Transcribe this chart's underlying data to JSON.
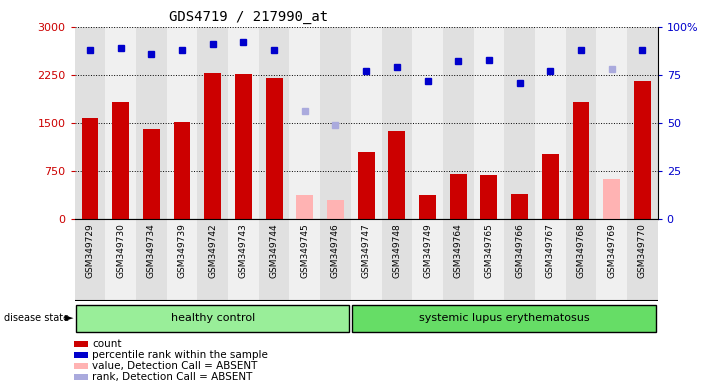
{
  "title": "GDS4719 / 217990_at",
  "samples": [
    "GSM349729",
    "GSM349730",
    "GSM349734",
    "GSM349739",
    "GSM349742",
    "GSM349743",
    "GSM349744",
    "GSM349745",
    "GSM349746",
    "GSM349747",
    "GSM349748",
    "GSM349749",
    "GSM349764",
    "GSM349765",
    "GSM349766",
    "GSM349767",
    "GSM349768",
    "GSM349769",
    "GSM349770"
  ],
  "counts": [
    1580,
    1820,
    1400,
    1520,
    2280,
    2270,
    2200,
    null,
    null,
    1050,
    1380,
    380,
    700,
    690,
    390,
    1020,
    1820,
    null,
    2150
  ],
  "counts_absent": [
    null,
    null,
    null,
    null,
    null,
    null,
    null,
    380,
    300,
    null,
    null,
    null,
    null,
    null,
    null,
    null,
    null,
    620,
    null
  ],
  "percentiles": [
    88,
    89,
    86,
    88,
    91,
    92,
    88,
    null,
    null,
    77,
    79,
    72,
    82,
    83,
    71,
    77,
    88,
    null,
    88
  ],
  "percentiles_absent": [
    null,
    null,
    null,
    null,
    null,
    null,
    null,
    56,
    49,
    null,
    null,
    null,
    null,
    null,
    null,
    null,
    null,
    78,
    null
  ],
  "group_healthy_indices": [
    0,
    1,
    2,
    3,
    4,
    5,
    6,
    7,
    8
  ],
  "group_sle_indices": [
    9,
    10,
    11,
    12,
    13,
    14,
    15,
    16,
    17,
    18
  ],
  "ylim_left": [
    0,
    3000
  ],
  "ylim_right": [
    0,
    100
  ],
  "yticks_left": [
    0,
    750,
    1500,
    2250,
    3000
  ],
  "ytick_labels_left": [
    "0",
    "750",
    "1500",
    "2250",
    "3000"
  ],
  "ytick_labels_right": [
    "0",
    "25",
    "50",
    "75",
    "100%"
  ],
  "bar_color_present": "#cc0000",
  "bar_color_absent": "#ffb3b3",
  "dot_color_present": "#0000cc",
  "dot_color_absent": "#aaaadd",
  "col_bg_even": "#e0e0e0",
  "col_bg_odd": "#f0f0f0",
  "healthy_bg": "#99ee99",
  "sle_bg": "#66dd66",
  "legend_items": [
    "count",
    "percentile rank within the sample",
    "value, Detection Call = ABSENT",
    "rank, Detection Call = ABSENT"
  ],
  "legend_colors": [
    "#cc0000",
    "#0000cc",
    "#ffb3b3",
    "#aaaadd"
  ]
}
